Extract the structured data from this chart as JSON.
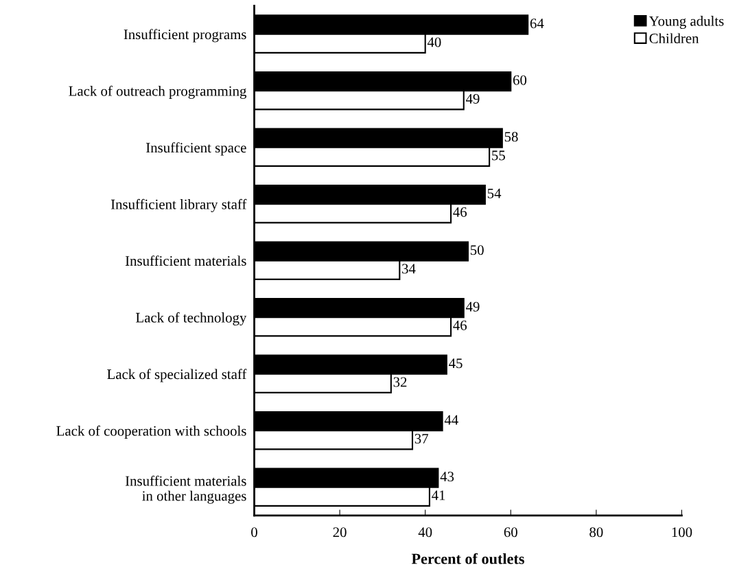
{
  "chart_data": {
    "type": "bar",
    "orientation": "horizontal",
    "xlabel": "Percent of outlets",
    "categories": [
      "Insufficient programs",
      "Lack of outreach programming",
      "Insufficient space",
      "Insufficient library staff",
      "Insufficient materials",
      "Lack of technology",
      "Lack of specialized staff",
      "Lack of cooperation with schools",
      "Insufficient materials\nin other languages"
    ],
    "series": [
      {
        "name": "Young adults",
        "color": "#000000",
        "values": [
          64,
          60,
          58,
          54,
          50,
          49,
          45,
          44,
          43
        ]
      },
      {
        "name": "Children",
        "color": "#ffffff",
        "values": [
          40,
          49,
          55,
          46,
          34,
          46,
          32,
          37,
          41
        ]
      }
    ],
    "xlim": [
      0,
      100
    ],
    "xticks": [
      0,
      20,
      40,
      60,
      80,
      100
    ],
    "data_labels": true,
    "grid": false,
    "legend": "top right"
  }
}
